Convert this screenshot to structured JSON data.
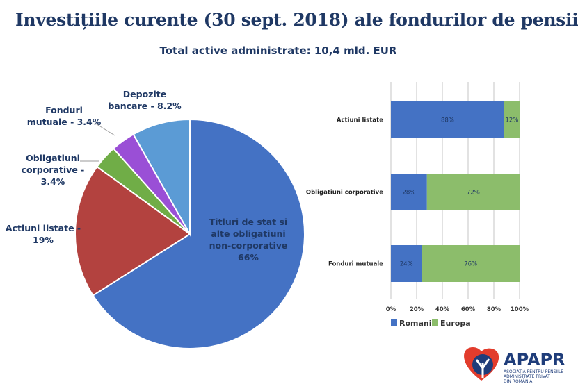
{
  "title": "Investițiile curente (30 sept. 2018) ale fondurilor de pensii",
  "subtitle": "Total active administrate: 10,4 mld. EUR",
  "chart_data": [
    {
      "type": "pie",
      "start": "top",
      "direction": "clockwise",
      "slices": [
        {
          "label": [
            "Titluri de stat si",
            "alte obligatiuni",
            "non-corporative",
            "66%"
          ],
          "value": 66,
          "color": "#4472c4"
        },
        {
          "label": [
            "Actiuni listate -",
            "19%"
          ],
          "value": 19,
          "color": "#b3423f"
        },
        {
          "label": [
            "Obligatiuni",
            "corporative -",
            "3.4%"
          ],
          "value": 3.4,
          "color": "#70ad47"
        },
        {
          "label": [
            "Fonduri",
            "mutuale - 3.4%"
          ],
          "value": 3.4,
          "color": "#9a4fd6"
        },
        {
          "label": [
            "Depozite",
            "bancare - 8.2%"
          ],
          "value": 8.2,
          "color": "#5b9bd5"
        }
      ]
    },
    {
      "type": "bar",
      "orientation": "horizontal",
      "stacked": "percent",
      "categories": [
        "Actiuni listate",
        "Obligatiuni corporative",
        "Fonduri mutuale"
      ],
      "series": [
        {
          "name": "Romania",
          "values": [
            88,
            28,
            24
          ],
          "labels": [
            "88%",
            "28%",
            "24%"
          ],
          "color": "#4472c4"
        },
        {
          "name": "Europa",
          "values": [
            12,
            72,
            76
          ],
          "labels": [
            "12%",
            "72%",
            "76%"
          ],
          "color": "#8cbd6b"
        }
      ],
      "xlim": [
        0,
        100
      ],
      "xticks": [
        "0%",
        "20%",
        "40%",
        "60%",
        "80%",
        "100%"
      ],
      "grid": true,
      "legend": "bottom"
    }
  ],
  "logo": {
    "name": "APAPR",
    "tagline": "ASOCIAȚIA PENTRU PENSIILE ADMINISTRATE PRIVAT DIN ROMÂNIA"
  }
}
